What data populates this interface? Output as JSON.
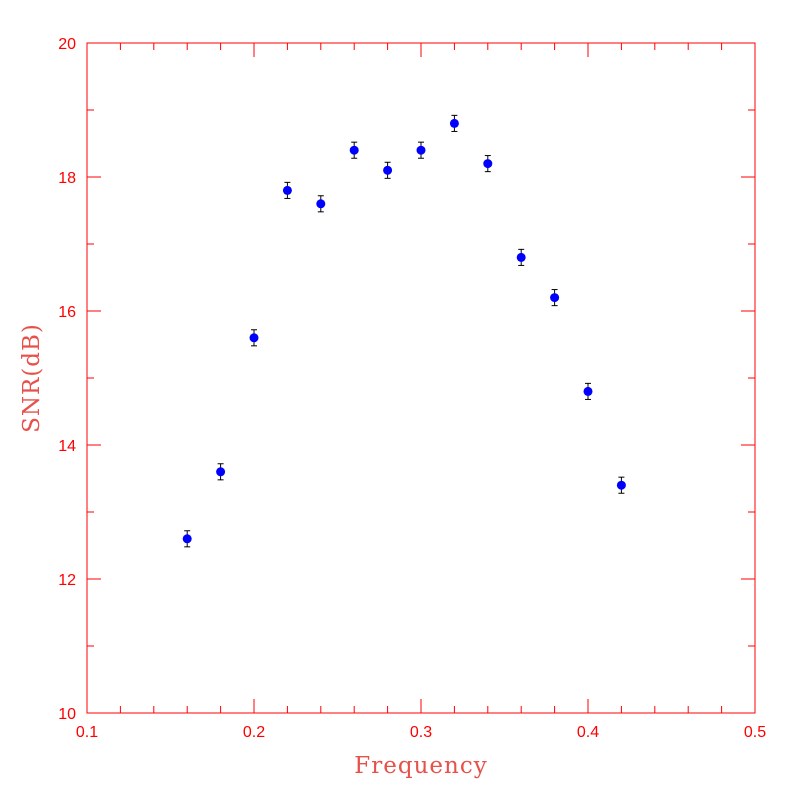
{
  "chart_data": {
    "type": "scatter",
    "title": "",
    "xlabel": "Frequency",
    "ylabel": "SNR(dB)",
    "xlim": [
      0.1,
      0.5
    ],
    "ylim": [
      10,
      20
    ],
    "x_ticks": [
      "0.1",
      "0.2",
      "0.3",
      "0.4",
      "0.5"
    ],
    "y_ticks": [
      "10",
      "12",
      "14",
      "16",
      "18",
      "20"
    ],
    "grid": false,
    "error_bars": true,
    "x": [
      0.16,
      0.18,
      0.2,
      0.22,
      0.24,
      0.26,
      0.28,
      0.3,
      0.32,
      0.34,
      0.36,
      0.38,
      0.4,
      0.42
    ],
    "y": [
      12.6,
      13.6,
      15.6,
      17.8,
      17.6,
      18.4,
      18.1,
      18.4,
      18.8,
      18.2,
      16.8,
      16.2,
      14.8,
      13.4
    ],
    "yerr": [
      0.12,
      0.12,
      0.12,
      0.12,
      0.12,
      0.12,
      0.12,
      0.12,
      0.12,
      0.12,
      0.12,
      0.12,
      0.12,
      0.12
    ],
    "colors": {
      "axes": "#ff0000",
      "axis_title": "#e8504a",
      "marker": "#0000ff",
      "error_bar": "#000000"
    }
  }
}
